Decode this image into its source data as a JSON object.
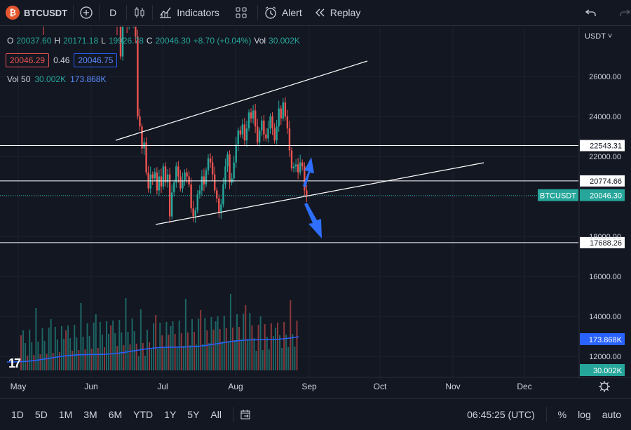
{
  "toolbar": {
    "symbol": "BTCUSDT",
    "logo_letter": "₿",
    "interval": "D",
    "indicators_label": "Indicators",
    "alert_label": "Alert",
    "replay_label": "Replay"
  },
  "legend": {
    "open_label": "O",
    "open": "20037.60",
    "high_label": "H",
    "high": "20171.18",
    "low_label": "L",
    "low": "19926.78",
    "close_label": "C",
    "close": "20046.30",
    "change": "+8.70 (+0.04%)",
    "vol_label": "Vol",
    "vol": "30.002K"
  },
  "price_boxes": {
    "sell": "20046.29",
    "spread": "0.46",
    "buy": "20046.75"
  },
  "volume_legend": {
    "label": "Vol 50",
    "value": "30.002K",
    "ma": "173.868K"
  },
  "currency": "USDT",
  "colors": {
    "up": "#26a69a",
    "down": "#ef5350",
    "bg": "#131722",
    "ma": "#2962ff",
    "arrow": "#2f6fff"
  },
  "chart_data": {
    "type": "candlestick",
    "y_ticks": [
      "26000.00",
      "24000.00",
      "22000.00",
      "18000.00",
      "16000.00",
      "14000.00",
      "12000.00"
    ],
    "x_ticks": [
      "May",
      "Jun",
      "Jul",
      "Aug",
      "Sep",
      "Oct",
      "Nov",
      "Dec"
    ],
    "horizontal_levels": [
      "22543.31",
      "20774.66",
      "17688.26"
    ],
    "last_price_label": "BTCUSDT",
    "last_price": "20046.30",
    "volume_ma_value": "173.868K",
    "volume_last": "30.002K"
  },
  "bottom": {
    "ranges": [
      "1D",
      "5D",
      "1M",
      "3M",
      "6M",
      "YTD",
      "1Y",
      "5Y",
      "All"
    ],
    "time": "06:45:25 (UTC)",
    "percent": "%",
    "log": "log",
    "auto": "auto"
  },
  "tv_logo": "17"
}
